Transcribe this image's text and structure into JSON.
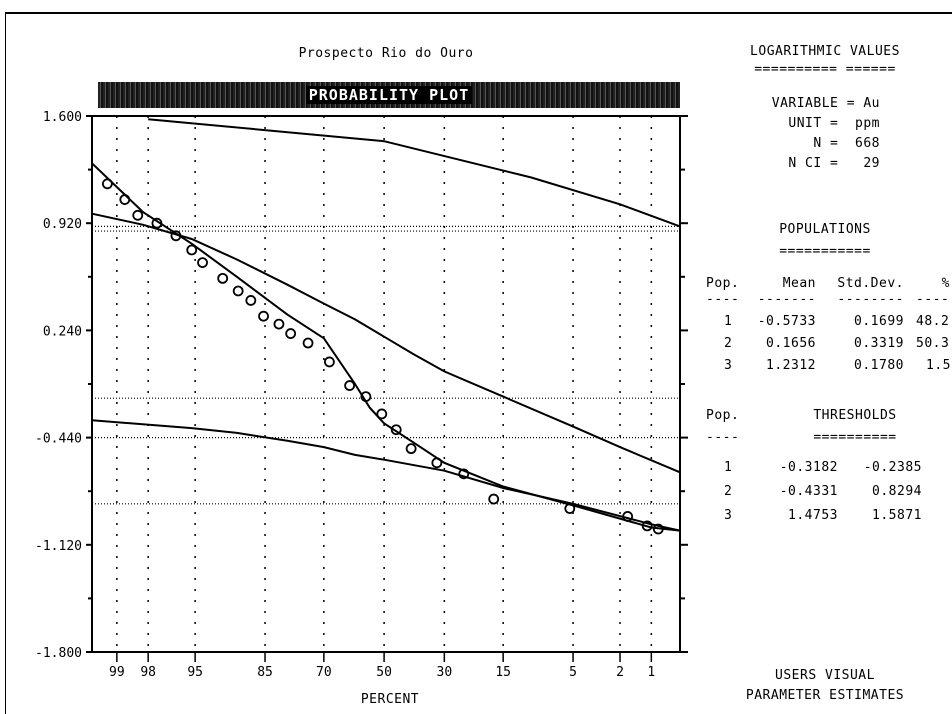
{
  "chart_data": {
    "type": "scatter",
    "title": "Prospecto Rio do Ouro",
    "subtitle": "PROBABILITY PLOT",
    "xlabel": "PERCENT",
    "ylabel": "",
    "ylim": [
      -1.8,
      1.6
    ],
    "y_ticks": [
      "1.600",
      "0.920",
      "0.240",
      "-0.440",
      "-1.120",
      "-1.800"
    ],
    "x_ticks": [
      "99",
      "98",
      "95",
      "85",
      "70",
      "50",
      "30",
      "15",
      "5",
      "2",
      "1"
    ],
    "grid": true,
    "series": [
      {
        "kind": "points",
        "x": [
          99.2,
          98.8,
          98.4,
          97.6,
          96.5,
          95.3,
          94.3,
          92.0,
          89.8,
          87.7,
          85.3,
          82.0,
          79.2,
          74.6,
          68.3,
          61.8,
          56.3,
          50.8,
          45.8,
          40.7,
          32.3,
          24.4,
          17.0,
          5.3,
          1.7,
          1.1,
          0.85
        ],
        "y": [
          1.17,
          1.07,
          0.97,
          0.92,
          0.84,
          0.75,
          0.67,
          0.57,
          0.49,
          0.43,
          0.33,
          0.28,
          0.22,
          0.16,
          0.04,
          -0.11,
          -0.18,
          -0.29,
          -0.39,
          -0.51,
          -0.6,
          -0.67,
          -0.83,
          -0.89,
          -0.94,
          -1.0,
          -1.02
        ]
      },
      {
        "kind": "line",
        "x": [
          99.45,
          98.2,
          95.3,
          90.0,
          80.0,
          70.0,
          60.0,
          55.0,
          50.0,
          40.0,
          30.0,
          15.0,
          5.0,
          1.0,
          0.5
        ],
        "y": [
          1.3,
          0.99,
          0.79,
          0.58,
          0.34,
          0.19,
          -0.1,
          -0.25,
          -0.35,
          -0.47,
          -0.6,
          -0.75,
          -0.87,
          -1.01,
          -1.03
        ]
      },
      {
        "kind": "line",
        "x": [
          99.45,
          98.2,
          95.3,
          90.0,
          80.0,
          70.0,
          60.0,
          50.0,
          40.0,
          30.0,
          15.0,
          5.0,
          2.0,
          0.5
        ],
        "y": [
          0.98,
          0.91,
          0.82,
          0.69,
          0.53,
          0.41,
          0.31,
          0.2,
          0.09,
          -0.02,
          -0.18,
          -0.37,
          -0.5,
          -0.66
        ]
      },
      {
        "kind": "line",
        "x": [
          98.0,
          50.0,
          10.0,
          2.0,
          0.5
        ],
        "y": [
          1.58,
          1.44,
          1.21,
          1.04,
          0.9
        ]
      },
      {
        "kind": "line",
        "x": [
          99.45,
          95.3,
          90.0,
          80.0,
          70.0,
          60.0,
          50.0,
          30.0,
          15.0,
          5.0,
          1.0,
          0.5
        ],
        "y": [
          -0.33,
          -0.38,
          -0.41,
          -0.46,
          -0.5,
          -0.55,
          -0.58,
          -0.65,
          -0.76,
          -0.86,
          -0.99,
          -1.03
        ]
      }
    ],
    "thresholds": [
      0.9,
      0.87,
      -0.19,
      -0.44,
      -0.86
    ]
  },
  "panel": {
    "heading": "LOGARITHMIC VALUES",
    "heading_rule": "========== ======",
    "variable": "VARIABLE = Au",
    "unit": "UNIT =  ppm",
    "n": "N =  668",
    "n_ci": "N CI =   29",
    "populations_heading": "POPULATIONS",
    "populations_rule": "===========",
    "pop_header": [
      "Pop.",
      "Mean",
      "Std.Dev.",
      "%"
    ],
    "pop_dashes": [
      "----",
      "-------",
      "--------",
      "----"
    ],
    "pop_rows": [
      [
        "1",
        "-0.5733",
        "0.1699",
        "48.2"
      ],
      [
        "2",
        "0.1656",
        "0.3319",
        "50.3"
      ],
      [
        "3",
        "1.2312",
        "0.1780",
        "1.5"
      ]
    ],
    "thresholds_pop": "Pop.",
    "thresholds_heading": "THRESHOLDS",
    "thresholds_dashes": "----",
    "thresholds_rule": "==========",
    "threshold_rows": [
      [
        "1",
        "-0.3182",
        "-0.2385"
      ],
      [
        "2",
        "-0.4331",
        "0.8294"
      ],
      [
        "3",
        "1.4753",
        "1.5871"
      ]
    ],
    "footer_1": "USERS VISUAL",
    "footer_2": "PARAMETER ESTIMATES"
  }
}
